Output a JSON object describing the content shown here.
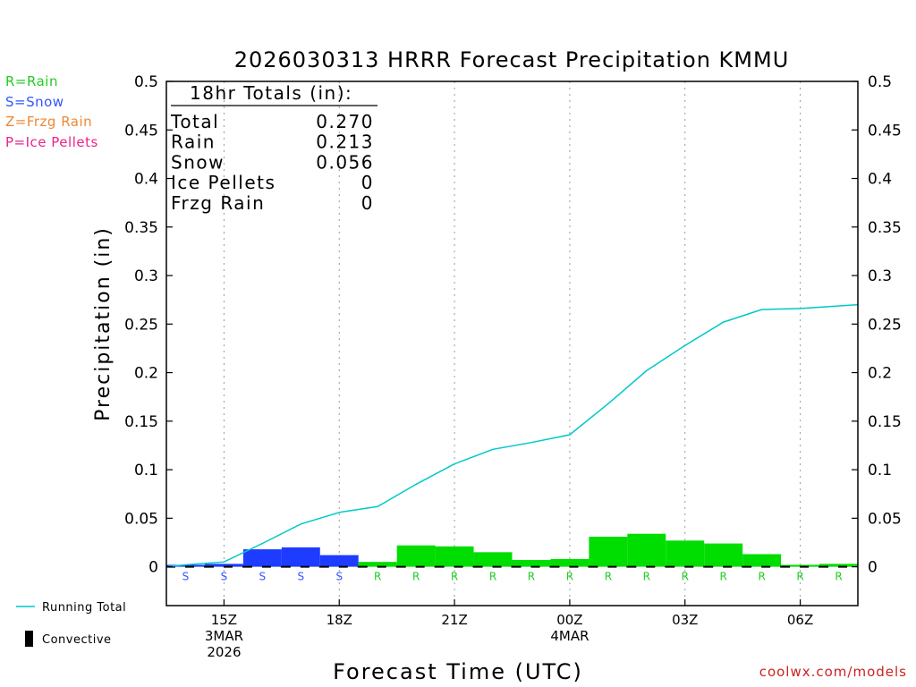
{
  "chart_data": {
    "type": "bar",
    "title": "2026030313 HRRR Forecast Precipitation KMMU",
    "xlabel": "Forecast Time (UTC)",
    "ylabel": "Precipitation (in)",
    "ylim": [
      -0.04,
      0.5
    ],
    "yticks": [
      0,
      0.05,
      0.1,
      0.15,
      0.2,
      0.25,
      0.3,
      0.35,
      0.4,
      0.45,
      0.5
    ],
    "ytick_labels": [
      "0",
      "0.05",
      "0.1",
      "0.15",
      "0.2",
      "0.25",
      "0.3",
      "0.35",
      "0.4",
      "0.45",
      "0.5"
    ],
    "xlim_hours": [
      13.5,
      31.5
    ],
    "xticks": [
      {
        "hour": 15,
        "lines": [
          "15Z",
          "3MAR",
          "2026"
        ]
      },
      {
        "hour": 18,
        "lines": [
          "18Z"
        ]
      },
      {
        "hour": 21,
        "lines": [
          "21Z"
        ]
      },
      {
        "hour": 24,
        "lines": [
          "00Z",
          "4MAR"
        ]
      },
      {
        "hour": 27,
        "lines": [
          "03Z"
        ]
      },
      {
        "hour": 30,
        "lines": [
          "06Z"
        ]
      }
    ],
    "hours": [
      14,
      15,
      16,
      17,
      18,
      19,
      20,
      21,
      22,
      23,
      24,
      25,
      26,
      27,
      28,
      29,
      30,
      31
    ],
    "hourly_precip": [
      0.002,
      0.003,
      0.018,
      0.02,
      0.012,
      0.005,
      0.022,
      0.021,
      0.015,
      0.007,
      0.008,
      0.031,
      0.034,
      0.027,
      0.024,
      0.013,
      0.002,
      0.003
    ],
    "ptype": [
      "S",
      "S",
      "S",
      "S",
      "S",
      "R",
      "R",
      "R",
      "R",
      "R",
      "R",
      "R",
      "R",
      "R",
      "R",
      "R",
      "R",
      "R"
    ],
    "running_total": {
      "hours": [
        13.5,
        14,
        15,
        16,
        17,
        18,
        19,
        20,
        21,
        22,
        23,
        24,
        25,
        26,
        27,
        28,
        29,
        30,
        31.5
      ],
      "values": [
        0.0,
        0.002,
        0.005,
        0.024,
        0.044,
        0.056,
        0.062,
        0.085,
        0.106,
        0.121,
        0.128,
        0.136,
        0.168,
        0.202,
        0.228,
        0.252,
        0.265,
        0.266,
        0.27
      ]
    },
    "totals_box": {
      "header": "18hr Totals (in):",
      "rows": [
        {
          "label": "Total",
          "value": "0.270"
        },
        {
          "label": "Rain",
          "value": "0.213"
        },
        {
          "label": "Snow",
          "value": "0.056"
        },
        {
          "label": "Ice Pellets",
          "value": "0"
        },
        {
          "label": "Frzg Rain",
          "value": "0"
        }
      ]
    },
    "ptype_legend": [
      {
        "text": "R=Rain",
        "color": "#22cc22"
      },
      {
        "text": "S=Snow",
        "color": "#3355ff"
      },
      {
        "text": "Z=Frzg Rain",
        "color": "#ee8833"
      },
      {
        "text": "P=Ice Pellets",
        "color": "#ee2288"
      }
    ],
    "series_legend": [
      {
        "text": "Running Total",
        "color": "#00c8c8",
        "icon": "line"
      },
      {
        "text": "Convective",
        "color": "#000000",
        "icon": "bar"
      }
    ],
    "colors": {
      "rain": "#00dd00",
      "snow": "#1e3cff",
      "total_line": "#00c8c8",
      "rain_label": "#22cc22",
      "snow_label": "#3355ff"
    }
  },
  "source": "coolwx.com/models"
}
